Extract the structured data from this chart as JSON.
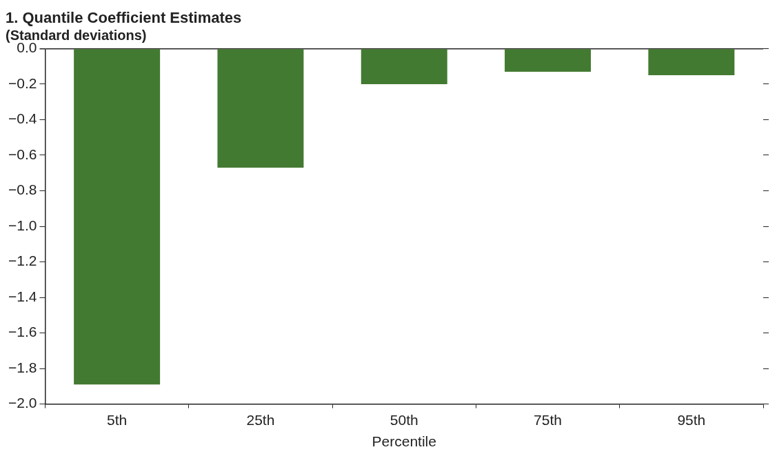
{
  "chart_data": {
    "type": "bar",
    "title": "1. Quantile Coefficient Estimates",
    "subtitle": "(Standard deviations)",
    "xlabel": "Percentile",
    "categories": [
      "5th",
      "25th",
      "50th",
      "75th",
      "95th"
    ],
    "series": [
      {
        "color": "#437a31",
        "values": [
          -1.89,
          -0.67,
          -0.2,
          -0.13,
          -0.15
        ]
      }
    ],
    "ylim": [
      -2.0,
      0.0
    ],
    "yticks": [
      {
        "value": 0,
        "label": "0.0"
      },
      {
        "value": -0.2,
        "label": "−0.2"
      },
      {
        "value": -0.4,
        "label": "−0.4"
      },
      {
        "value": -0.6,
        "label": "−0.6"
      },
      {
        "value": -0.8,
        "label": "−0.8"
      },
      {
        "value": -1.0,
        "label": "−1.0"
      },
      {
        "value": -1.2,
        "label": "−1.2"
      },
      {
        "value": -1.4,
        "label": "−1.4"
      },
      {
        "value": -1.6,
        "label": "−1.6"
      },
      {
        "value": -1.8,
        "label": "−1.8"
      },
      {
        "value": -2.0,
        "label": "−2.0"
      }
    ],
    "grid": false,
    "legend": false
  }
}
